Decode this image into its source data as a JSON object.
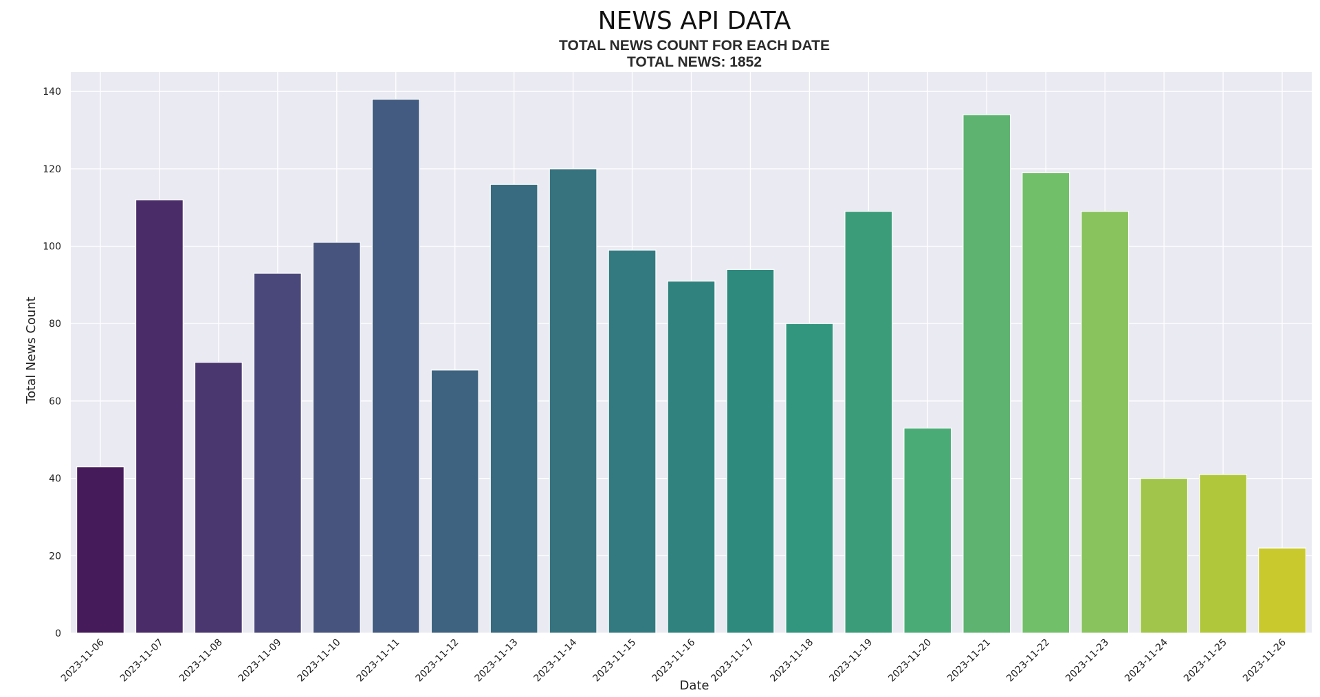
{
  "chart_data": {
    "type": "bar",
    "title": "NEWS API DATA",
    "subtitle_line1": "TOTAL NEWS COUNT FOR EACH DATE",
    "subtitle_line2": "TOTAL NEWS: 1852",
    "xlabel": "Date",
    "ylabel": "Total News Count",
    "ylim": [
      0,
      145
    ],
    "yticks": [
      0,
      20,
      40,
      60,
      80,
      100,
      120,
      140
    ],
    "grid": true,
    "categories": [
      "2023-11-06",
      "2023-11-07",
      "2023-11-08",
      "2023-11-09",
      "2023-11-10",
      "2023-11-11",
      "2023-11-12",
      "2023-11-13",
      "2023-11-14",
      "2023-11-15",
      "2023-11-16",
      "2023-11-17",
      "2023-11-18",
      "2023-11-19",
      "2023-11-20",
      "2023-11-21",
      "2023-11-22",
      "2023-11-23",
      "2023-11-24",
      "2023-11-25",
      "2023-11-26"
    ],
    "values": [
      43,
      112,
      70,
      93,
      101,
      138,
      68,
      116,
      120,
      99,
      91,
      94,
      80,
      109,
      53,
      134,
      119,
      109,
      40,
      41,
      22
    ],
    "bar_colors": [
      "#461b5a",
      "#4a2c68",
      "#4b376f",
      "#4a487a",
      "#47547e",
      "#435b81",
      "#3e6380",
      "#386b80",
      "#36737f",
      "#327a80",
      "#2f827e",
      "#2e8a7d",
      "#32957d",
      "#3a9c78",
      "#4aab76",
      "#5db36f",
      "#72bf69",
      "#88c35d",
      "#a1c54a",
      "#b0c73b",
      "#c9c92e"
    ],
    "plot_background": "#eaeaf2",
    "grid_color": "#ffffff"
  }
}
